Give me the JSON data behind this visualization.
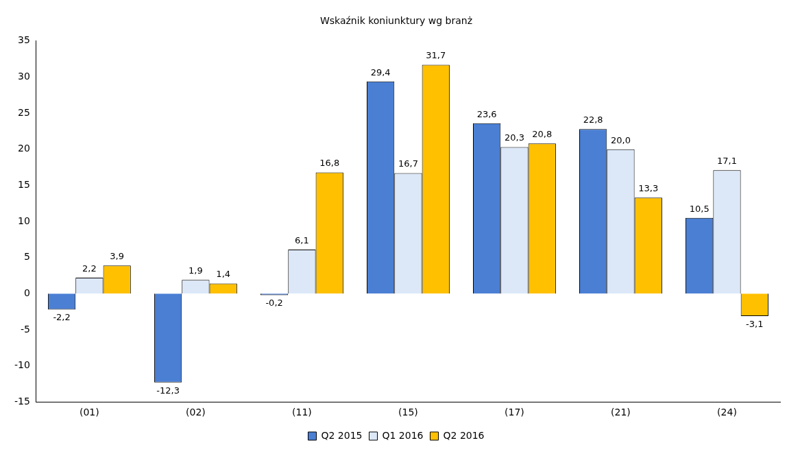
{
  "chart_data": {
    "type": "bar",
    "title": "Wskaźnik koniunktury wg branż",
    "categories": [
      "(01)",
      "(02)",
      "(11)",
      "(15)",
      "(17)",
      "(21)",
      "(24)"
    ],
    "series": [
      {
        "name": "Q2 2015",
        "color": "#4a7fd4",
        "values": [
          -2.2,
          -12.3,
          -0.2,
          29.4,
          23.6,
          22.8,
          10.5
        ],
        "value_labels": [
          "-2,2",
          "-12,3",
          "-0,2",
          "29,4",
          "23,6",
          "22,8",
          "10,5"
        ]
      },
      {
        "name": "Q1 2016",
        "color": "#dce8f8",
        "values": [
          2.2,
          1.9,
          6.1,
          16.7,
          20.3,
          20.0,
          17.1
        ],
        "value_labels": [
          "2,2",
          "1,9",
          "6,1",
          "16,7",
          "20,3",
          "20,0",
          "17,1"
        ]
      },
      {
        "name": "Q2 2016",
        "color": "#ffc000",
        "values": [
          3.9,
          1.4,
          16.8,
          31.7,
          20.8,
          13.3,
          -3.1
        ],
        "value_labels": [
          "3,9",
          "1,4",
          "16,8",
          "31,7",
          "20,8",
          "13,3",
          "-3,1"
        ]
      }
    ],
    "ylim": [
      -15,
      35
    ],
    "yticks": [
      -15,
      -10,
      -5,
      0,
      5,
      10,
      15,
      20,
      25,
      30,
      35
    ],
    "grid": false,
    "legend": "bottom"
  }
}
